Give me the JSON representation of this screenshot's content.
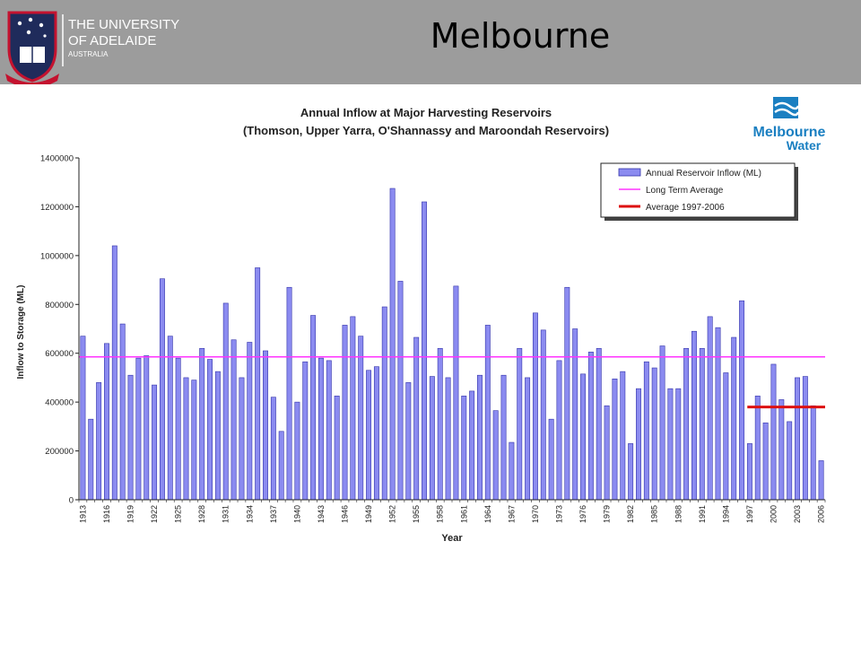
{
  "header": {
    "slide_title": "Melbourne",
    "logo_line1": "THE UNIVERSITY",
    "logo_line2": "OF ADELAIDE",
    "logo_line3": "AUSTRALIA"
  },
  "brand": {
    "name_line1": "Melbourne",
    "name_line2": "Water"
  },
  "colors": {
    "header_bg": "#9c9c9c",
    "logo_navy": "#1f2b5b",
    "bar_fill": "#8b8bf0",
    "bar_stroke": "#3333aa",
    "long_term_avg": "#ff33ff",
    "avg_recent": "#dd1111",
    "brand_blue": "#1a7fc1"
  },
  "chart_data": {
    "type": "bar",
    "title": "Annual Inflow at Major Harvesting Reservoirs",
    "subtitle": "(Thomson, Upper Yarra, O'Shannassy and Maroondah Reservoirs)",
    "xlabel": "Year",
    "ylabel": "Inflow to Storage (ML)",
    "ylim": [
      0,
      1400000
    ],
    "yticks": [
      0,
      200000,
      400000,
      600000,
      800000,
      1000000,
      1200000,
      1400000
    ],
    "xticks": [
      "1913",
      "1916",
      "1919",
      "1922",
      "1925",
      "1928",
      "1931",
      "1934",
      "1937",
      "1940",
      "1943",
      "1946",
      "1949",
      "1952",
      "1955",
      "1958",
      "1961",
      "1964",
      "1967",
      "1970",
      "1973",
      "1976",
      "1979",
      "1982",
      "1985",
      "1988",
      "1991",
      "1994",
      "1997",
      "2000",
      "2003",
      "2006"
    ],
    "grid": false,
    "legend_position": "top-right",
    "x": [
      "1913",
      "1914",
      "1915",
      "1916",
      "1917",
      "1918",
      "1919",
      "1920",
      "1921",
      "1922",
      "1923",
      "1924",
      "1925",
      "1926",
      "1927",
      "1928",
      "1929",
      "1930",
      "1931",
      "1932",
      "1933",
      "1934",
      "1935",
      "1936",
      "1937",
      "1938",
      "1939",
      "1940",
      "1941",
      "1942",
      "1943",
      "1944",
      "1945",
      "1946",
      "1947",
      "1948",
      "1949",
      "1950",
      "1951",
      "1952",
      "1953",
      "1954",
      "1955",
      "1956",
      "1957",
      "1958",
      "1959",
      "1960",
      "1961",
      "1962",
      "1963",
      "1964",
      "1965",
      "1966",
      "1967",
      "1968",
      "1969",
      "1970",
      "1971",
      "1972",
      "1973",
      "1974",
      "1975",
      "1976",
      "1977",
      "1978",
      "1979",
      "1980",
      "1981",
      "1982",
      "1983",
      "1984",
      "1985",
      "1986",
      "1987",
      "1988",
      "1989",
      "1990",
      "1991",
      "1992",
      "1993",
      "1994",
      "1995",
      "1996",
      "1997",
      "1998",
      "1999",
      "2000",
      "2001",
      "2002",
      "2003",
      "2004",
      "2005",
      "2006"
    ],
    "series": [
      {
        "name": "Annual Reservoir Inflow (ML)",
        "values": [
          670000,
          330000,
          480000,
          640000,
          1040000,
          720000,
          510000,
          580000,
          590000,
          470000,
          905000,
          670000,
          580000,
          500000,
          490000,
          620000,
          575000,
          525000,
          805000,
          655000,
          500000,
          645000,
          950000,
          610000,
          420000,
          280000,
          870000,
          400000,
          565000,
          755000,
          580000,
          570000,
          425000,
          715000,
          750000,
          670000,
          530000,
          545000,
          790000,
          1275000,
          895000,
          480000,
          665000,
          1220000,
          505000,
          620000,
          500000,
          875000,
          425000,
          445000,
          510000,
          715000,
          365000,
          510000,
          235000,
          620000,
          500000,
          765000,
          695000,
          330000,
          570000,
          870000,
          700000,
          515000,
          605000,
          620000,
          385000,
          495000,
          525000,
          230000,
          455000,
          565000,
          540000,
          630000,
          455000,
          455000,
          620000,
          690000,
          620000,
          750000,
          705000,
          520000,
          665000,
          815000,
          230000,
          425000,
          315000,
          555000,
          410000,
          320000,
          500000,
          505000,
          385000,
          160000
        ]
      }
    ],
    "lines": [
      {
        "name": "Long Term Average",
        "value": 585000,
        "from": "1913",
        "to": "2006"
      },
      {
        "name": "Average 1997-2006",
        "value": 380000,
        "from": "1997",
        "to": "2006"
      }
    ]
  }
}
